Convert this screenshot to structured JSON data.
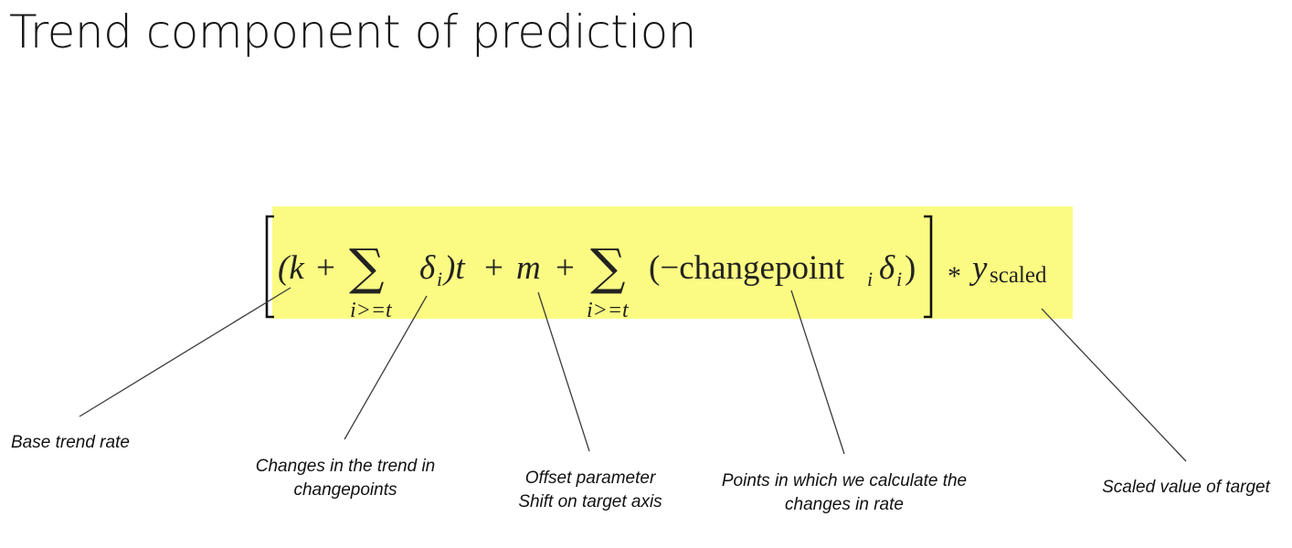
{
  "title": "Trend component of prediction",
  "formula": {
    "open_paren_k": "(k",
    "plus1": "+",
    "sum_symbol": "∑",
    "sum_subscript_1": "i>=t",
    "delta": "δ",
    "delta_sub": "i",
    "close_t": ")t",
    "plus2": "+",
    "m": "m",
    "plus3": "+",
    "sum_subscript_2": "i>=t",
    "changepoint_open": "(−changepoint",
    "changepoint_sub": "i",
    "delta2": "δ",
    "delta2_sub": "i",
    "close_paren": ")",
    "times": "*",
    "y": "y",
    "y_sub": "scaled",
    "highlight_color": "#fbfb83"
  },
  "labels": {
    "base_trend_rate": [
      "Base trend rate"
    ],
    "changes_in_trend": [
      "Changes in the trend in",
      "changepoints"
    ],
    "offset_parameter": [
      "Offset parameter",
      "Shift on target axis"
    ],
    "points_in_which": [
      "Points in which we calculate the",
      "changes in rate"
    ],
    "scaled_value": [
      "Scaled value of target"
    ]
  }
}
